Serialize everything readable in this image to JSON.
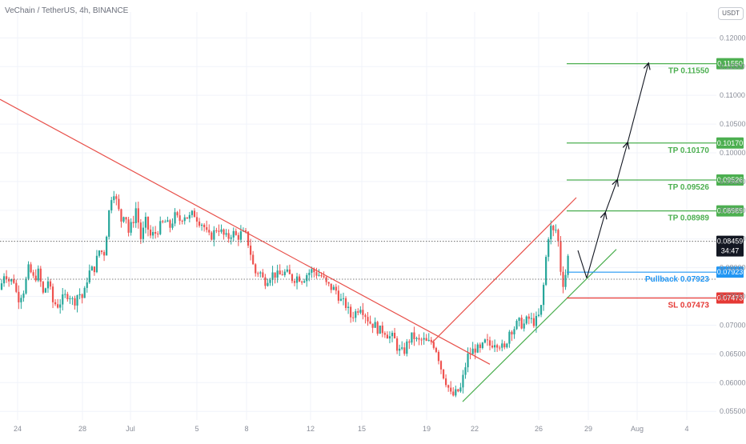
{
  "header": {
    "title": "VeChain / TetherUS, 4h, BINANCE",
    "currency": "USDT"
  },
  "chart_data": {
    "type": "candlestick",
    "symbol": "VeChain / TetherUS",
    "timeframe": "4h",
    "exchange": "BINANCE",
    "x_labels": [
      "24",
      "28",
      "Jul",
      "5",
      "8",
      "12",
      "15",
      "19",
      "22",
      "26",
      "29",
      "Aug",
      "4"
    ],
    "y_ticks": [
      "0.12000",
      "0.11500",
      "0.11000",
      "0.10500",
      "0.10000",
      "0.09500",
      "0.09000",
      "0.08500",
      "0.08000",
      "0.07500",
      "0.07000",
      "0.06500",
      "0.06000",
      "0.05500"
    ],
    "ylim": [
      0.0535,
      0.1245
    ],
    "current_price": "0.08459",
    "countdown": "34:47",
    "close_path": [
      {
        "x": 0,
        "y": 0.0762
      },
      {
        "x": 6,
        "y": 0.0795
      },
      {
        "x": 12,
        "y": 0.0775
      },
      {
        "x": 17,
        "y": 0.078
      },
      {
        "x": 22,
        "y": 0.0745
      },
      {
        "x": 30,
        "y": 0.0762
      },
      {
        "x": 36,
        "y": 0.08
      },
      {
        "x": 42,
        "y": 0.078
      },
      {
        "x": 48,
        "y": 0.0792
      },
      {
        "x": 54,
        "y": 0.0753
      },
      {
        "x": 60,
        "y": 0.0778
      },
      {
        "x": 66,
        "y": 0.074
      },
      {
        "x": 72,
        "y": 0.0735
      },
      {
        "x": 80,
        "y": 0.0748
      },
      {
        "x": 86,
        "y": 0.0756
      },
      {
        "x": 92,
        "y": 0.0738
      },
      {
        "x": 98,
        "y": 0.0758
      },
      {
        "x": 104,
        "y": 0.0745
      },
      {
        "x": 110,
        "y": 0.079
      },
      {
        "x": 118,
        "y": 0.08
      },
      {
        "x": 124,
        "y": 0.083
      },
      {
        "x": 130,
        "y": 0.0825
      },
      {
        "x": 134,
        "y": 0.087
      },
      {
        "x": 138,
        "y": 0.092
      },
      {
        "x": 142,
        "y": 0.0935
      },
      {
        "x": 148,
        "y": 0.09
      },
      {
        "x": 152,
        "y": 0.088
      },
      {
        "x": 156,
        "y": 0.0905
      },
      {
        "x": 160,
        "y": 0.086
      },
      {
        "x": 166,
        "y": 0.088
      },
      {
        "x": 170,
        "y": 0.0905
      },
      {
        "x": 176,
        "y": 0.085
      },
      {
        "x": 182,
        "y": 0.088
      },
      {
        "x": 188,
        "y": 0.0855
      },
      {
        "x": 194,
        "y": 0.086
      },
      {
        "x": 200,
        "y": 0.0872
      },
      {
        "x": 206,
        "y": 0.088
      },
      {
        "x": 212,
        "y": 0.087
      },
      {
        "x": 218,
        "y": 0.089
      },
      {
        "x": 224,
        "y": 0.0882
      },
      {
        "x": 230,
        "y": 0.0893
      },
      {
        "x": 236,
        "y": 0.0886
      },
      {
        "x": 242,
        "y": 0.0895
      },
      {
        "x": 248,
        "y": 0.0883
      },
      {
        "x": 254,
        "y": 0.0875
      },
      {
        "x": 260,
        "y": 0.0852
      },
      {
        "x": 266,
        "y": 0.0858
      },
      {
        "x": 272,
        "y": 0.0872
      },
      {
        "x": 278,
        "y": 0.0858
      },
      {
        "x": 284,
        "y": 0.085
      },
      {
        "x": 290,
        "y": 0.0862
      },
      {
        "x": 296,
        "y": 0.0853
      },
      {
        "x": 302,
        "y": 0.086
      },
      {
        "x": 308,
        "y": 0.0855
      },
      {
        "x": 314,
        "y": 0.082
      },
      {
        "x": 318,
        "y": 0.079
      },
      {
        "x": 324,
        "y": 0.0795
      },
      {
        "x": 330,
        "y": 0.0775
      },
      {
        "x": 336,
        "y": 0.0785
      },
      {
        "x": 342,
        "y": 0.079
      },
      {
        "x": 348,
        "y": 0.0785
      },
      {
        "x": 354,
        "y": 0.0792
      },
      {
        "x": 360,
        "y": 0.0788
      },
      {
        "x": 366,
        "y": 0.078
      },
      {
        "x": 372,
        "y": 0.0785
      },
      {
        "x": 378,
        "y": 0.078
      },
      {
        "x": 384,
        "y": 0.079
      },
      {
        "x": 390,
        "y": 0.0795
      },
      {
        "x": 396,
        "y": 0.079
      },
      {
        "x": 402,
        "y": 0.0785
      },
      {
        "x": 408,
        "y": 0.077
      },
      {
        "x": 414,
        "y": 0.0765
      },
      {
        "x": 420,
        "y": 0.076
      },
      {
        "x": 426,
        "y": 0.0742
      },
      {
        "x": 432,
        "y": 0.0735
      },
      {
        "x": 438,
        "y": 0.0715
      },
      {
        "x": 444,
        "y": 0.0722
      },
      {
        "x": 450,
        "y": 0.0735
      },
      {
        "x": 456,
        "y": 0.072
      },
      {
        "x": 462,
        "y": 0.0705
      },
      {
        "x": 468,
        "y": 0.07
      },
      {
        "x": 474,
        "y": 0.069
      },
      {
        "x": 480,
        "y": 0.0692
      },
      {
        "x": 486,
        "y": 0.068
      },
      {
        "x": 492,
        "y": 0.0678
      },
      {
        "x": 498,
        "y": 0.0655
      },
      {
        "x": 504,
        "y": 0.0652
      },
      {
        "x": 510,
        "y": 0.0672
      },
      {
        "x": 516,
        "y": 0.0682
      },
      {
        "x": 522,
        "y": 0.067
      },
      {
        "x": 528,
        "y": 0.0675
      },
      {
        "x": 534,
        "y": 0.0668
      },
      {
        "x": 540,
        "y": 0.0672
      },
      {
        "x": 546,
        "y": 0.0655
      },
      {
        "x": 552,
        "y": 0.062
      },
      {
        "x": 558,
        "y": 0.06
      },
      {
        "x": 564,
        "y": 0.0575
      },
      {
        "x": 570,
        "y": 0.0582
      },
      {
        "x": 576,
        "y": 0.059
      },
      {
        "x": 580,
        "y": 0.062
      },
      {
        "x": 584,
        "y": 0.0645
      },
      {
        "x": 588,
        "y": 0.0652
      },
      {
        "x": 594,
        "y": 0.066
      },
      {
        "x": 600,
        "y": 0.0655
      },
      {
        "x": 606,
        "y": 0.067
      },
      {
        "x": 612,
        "y": 0.0665
      },
      {
        "x": 618,
        "y": 0.0672
      },
      {
        "x": 624,
        "y": 0.0668
      },
      {
        "x": 630,
        "y": 0.0655
      },
      {
        "x": 636,
        "y": 0.069
      },
      {
        "x": 642,
        "y": 0.0695
      },
      {
        "x": 648,
        "y": 0.0705
      },
      {
        "x": 654,
        "y": 0.07
      },
      {
        "x": 660,
        "y": 0.0712
      },
      {
        "x": 666,
        "y": 0.0705
      },
      {
        "x": 672,
        "y": 0.071
      },
      {
        "x": 676,
        "y": 0.073
      },
      {
        "x": 680,
        "y": 0.078
      },
      {
        "x": 684,
        "y": 0.085
      },
      {
        "x": 688,
        "y": 0.087
      },
      {
        "x": 692,
        "y": 0.086
      },
      {
        "x": 696,
        "y": 0.087
      },
      {
        "x": 700,
        "y": 0.08
      },
      {
        "x": 704,
        "y": 0.077
      },
      {
        "x": 708,
        "y": 0.08
      },
      {
        "x": 712,
        "y": 0.0846
      }
    ],
    "lines": [
      {
        "name": "downtrend",
        "color": "#e8504a",
        "points": [
          [
            0,
            0.1093
          ],
          [
            612,
            0.0632
          ]
        ]
      },
      {
        "name": "channel-upper",
        "color": "#e8504a",
        "points": [
          [
            540,
            0.067
          ],
          [
            720,
            0.0922
          ]
        ]
      },
      {
        "name": "channel-lower",
        "color": "#4caf50",
        "points": [
          [
            578,
            0.0567
          ],
          [
            770,
            0.0832
          ]
        ]
      }
    ],
    "levels": [
      {
        "label": "TP 0.11550",
        "tag": "0.11550",
        "value": 0.1155,
        "color": "#4caf50",
        "x_from": 708
      },
      {
        "label": "TP 0.10170",
        "tag": "0.10170",
        "value": 0.1017,
        "color": "#4caf50",
        "x_from": 708
      },
      {
        "label": "TP 0.09526",
        "tag": "0.09526",
        "value": 0.09526,
        "color": "#4caf50",
        "x_from": 708
      },
      {
        "label": "TP 0.08989",
        "tag": "0.08989",
        "value": 0.08989,
        "color": "#4caf50",
        "x_from": 708
      },
      {
        "label": "Pullback 0.07923",
        "tag": "0.07923",
        "value": 0.07923,
        "color": "#2196f3",
        "x_from": 708
      },
      {
        "label": "SL 0.07473",
        "tag": "0.07473",
        "value": 0.07473,
        "color": "#e53935",
        "x_from": 708
      }
    ],
    "dotted_levels": [
      0.08459,
      0.078
    ],
    "projection_path": [
      [
        722,
        0.083
      ],
      [
        733,
        0.0782
      ],
      [
        756,
        0.0895
      ],
      [
        771,
        0.0952
      ],
      [
        784,
        0.1017
      ],
      [
        810,
        0.1155
      ]
    ],
    "colors": {
      "up": "#26a69a",
      "down": "#ef5350",
      "grid": "#f0f3fa",
      "axis_text": "#8a8e99"
    }
  }
}
